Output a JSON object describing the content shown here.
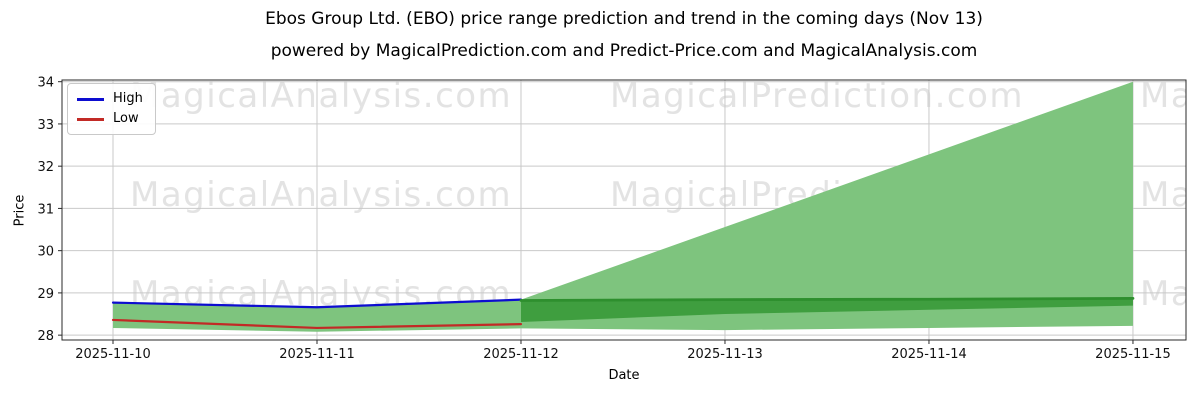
{
  "header": {
    "title": "Ebos Group Ltd. (EBO) price range prediction and trend in the coming days (Nov 13)",
    "subtitle": "powered by MagicalPrediction.com and Predict-Price.com and MagicalAnalysis.com"
  },
  "chart_data": {
    "type": "line",
    "title": "Ebos Group Ltd. (EBO) price range prediction and trend in the coming days (Nov 13)",
    "subtitle": "powered by MagicalPrediction.com and Predict-Price.com and MagicalAnalysis.com",
    "xlabel": "Date",
    "ylabel": "Price",
    "x_categories": [
      "2025-11-10",
      "2025-11-11",
      "2025-11-12",
      "2025-11-13",
      "2025-11-14",
      "2025-11-15"
    ],
    "y_ticks": [
      28,
      29,
      30,
      31,
      32,
      33,
      34
    ],
    "ylim": [
      27.885,
      34.04
    ],
    "xlim_index": [
      -0.25,
      5.26
    ],
    "grid": true,
    "legend": {
      "position": "upper-left",
      "entries": [
        {
          "label": "High",
          "color": "#0d0dd0"
        },
        {
          "label": "Low",
          "color": "#c22a26"
        }
      ]
    },
    "series": [
      {
        "name": "High",
        "kind": "line",
        "color": "#0d0dd0",
        "width": 2.2,
        "x_index": [
          0,
          1,
          2
        ],
        "values": [
          28.77,
          28.66,
          28.84
        ]
      },
      {
        "name": "Low",
        "kind": "line",
        "color": "#c22a26",
        "width": 2.2,
        "x_index": [
          0,
          1,
          2
        ],
        "values": [
          28.36,
          28.17,
          28.26
        ]
      },
      {
        "name": "Historical range band",
        "kind": "area",
        "color": "#7ec47e",
        "x_index": [
          0,
          1,
          2
        ],
        "upper": [
          28.77,
          28.66,
          28.84
        ],
        "lower": [
          28.17,
          28.08,
          28.16
        ]
      },
      {
        "name": "Prediction range cone",
        "kind": "area",
        "color": "#7ec47e",
        "x_index": [
          2,
          3,
          4,
          5
        ],
        "upper": [
          28.84,
          30.56,
          32.28,
          34.0
        ],
        "lower": [
          28.16,
          28.12,
          28.17,
          28.22
        ]
      },
      {
        "name": "Prediction core band",
        "kind": "area",
        "color": "#3f9e3f",
        "x_index": [
          2,
          3,
          4,
          5
        ],
        "upper": [
          28.82,
          28.84,
          28.85,
          28.87
        ],
        "lower": [
          28.31,
          28.5,
          28.6,
          28.7
        ]
      },
      {
        "name": "Trend",
        "kind": "line",
        "color": "#2e8f2e",
        "width": 2.8,
        "x_index": [
          2,
          3,
          4,
          5
        ],
        "values": [
          28.82,
          28.84,
          28.85,
          28.87
        ]
      }
    ],
    "watermarks": {
      "texts": [
        "MagicalAnalysis.com",
        "MagicalPrediction.com",
        "MagicalAnalysis.com"
      ],
      "color": "#c8c8c8",
      "opacity": 0.5
    },
    "axis": {
      "grid_color": "#c9c9c9",
      "spine_color": "#2a2a2a",
      "tick_label_color": "#111111"
    }
  }
}
